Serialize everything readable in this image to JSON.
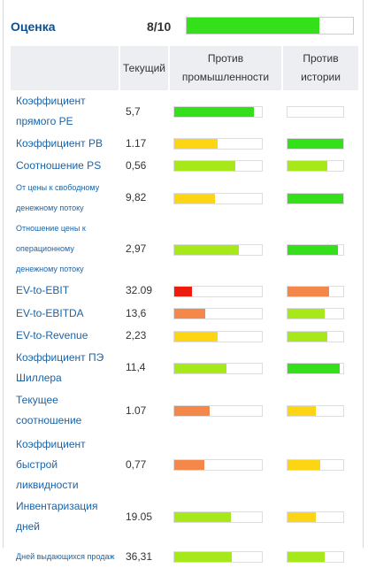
{
  "header": {
    "title": "Оценка",
    "score": "8/10",
    "score_fill": 0.8,
    "score_color": "#33e01a"
  },
  "table": {
    "columns": [
      "",
      "Текущий",
      "Против промышленности",
      "Против истории"
    ],
    "rows": [
      {
        "label": "Коэффициент прямого PE",
        "value": "5,7",
        "industry": {
          "fill": 0.91,
          "color": "#33e01a"
        },
        "history": {
          "fill": 0,
          "color": "#33e01a"
        }
      },
      {
        "label": "Коэффициент PB",
        "value": "1.17",
        "industry": {
          "fill": 0.49,
          "color": "#fcd514"
        },
        "history": {
          "fill": 1.0,
          "color": "#33e01a"
        }
      },
      {
        "label": "Соотношение PS",
        "value": "0,56",
        "industry": {
          "fill": 0.7,
          "color": "#a6e81a"
        },
        "history": {
          "fill": 0.72,
          "color": "#a6e81a"
        }
      },
      {
        "label": "От цены к свободному денежному потоку",
        "value": "9,82",
        "industry": {
          "fill": 0.46,
          "color": "#fcd514"
        },
        "history": {
          "fill": 1.0,
          "color": "#33e01a"
        }
      },
      {
        "label": "Отношение цены к операционному денежному потоку",
        "value": "2,97",
        "industry": {
          "fill": 0.74,
          "color": "#a6e81a"
        },
        "history": {
          "fill": 0.91,
          "color": "#33e01a"
        }
      },
      {
        "label": "EV-to-EBIT",
        "value": "32.09",
        "industry": {
          "fill": 0.2,
          "color": "#ee1c0e"
        },
        "history": {
          "fill": 0.74,
          "color": "#f4874a"
        }
      },
      {
        "label": "EV-to-EBITDA",
        "value": "13,6",
        "industry": {
          "fill": 0.35,
          "color": "#f4874a"
        },
        "history": {
          "fill": 0.66,
          "color": "#a6e81a"
        }
      },
      {
        "label": "EV-to-Revenue",
        "value": "2,23",
        "industry": {
          "fill": 0.49,
          "color": "#fcd514"
        },
        "history": {
          "fill": 0.72,
          "color": "#a6e81a"
        }
      },
      {
        "label": "Коэффициент ПЭ Шиллера",
        "value": "11,4",
        "industry": {
          "fill": 0.6,
          "color": "#a6e81a"
        },
        "history": {
          "fill": 0.94,
          "color": "#33e01a"
        }
      },
      {
        "label": "Текущее соотношение",
        "value": "1.07",
        "industry": {
          "fill": 0.4,
          "color": "#f4874a"
        },
        "history": {
          "fill": 0.51,
          "color": "#fcd514"
        }
      },
      {
        "label": "Коэффициент быстрой ликвидности",
        "value": "0,77",
        "industry": {
          "fill": 0.34,
          "color": "#f4874a"
        },
        "history": {
          "fill": 0.58,
          "color": "#fcd514"
        }
      },
      {
        "label": "Инвентаризация дней",
        "value": "19.05",
        "industry": {
          "fill": 0.65,
          "color": "#a6e81a"
        },
        "history": {
          "fill": 0.51,
          "color": "#fcd514"
        }
      },
      {
        "label": "Дней выдающихся продаж",
        "value": "36,31",
        "industry": {
          "fill": 0.66,
          "color": "#a6e81a"
        },
        "history": {
          "fill": 0.66,
          "color": "#a6e81a"
        }
      }
    ]
  }
}
